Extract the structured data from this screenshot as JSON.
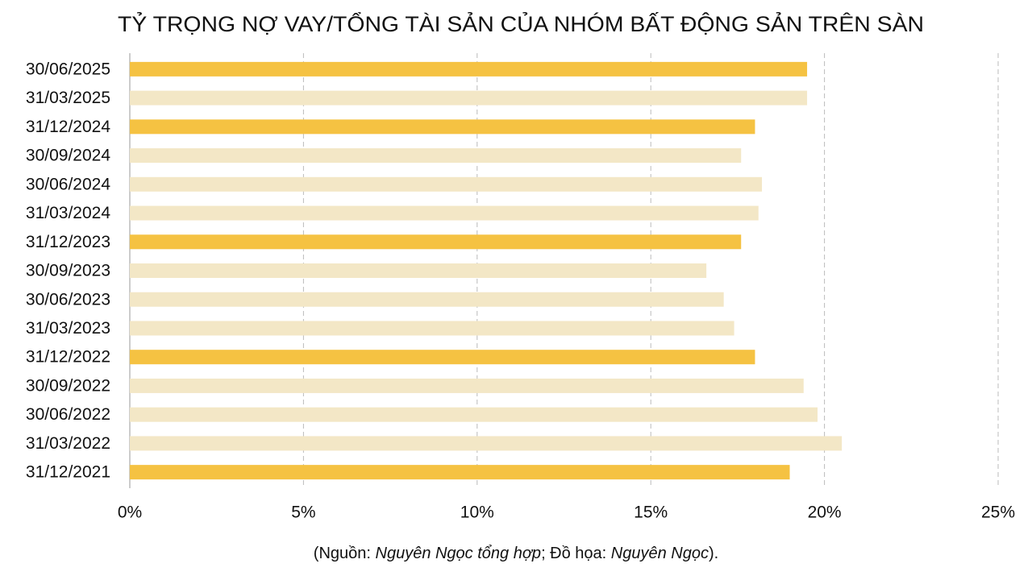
{
  "chart_data": {
    "type": "bar",
    "orientation": "horizontal",
    "title": "TỶ TRỌNG NỢ VAY/TỔNG TÀI SẢN CỦA NHÓM BẤT ĐỘNG SẢN TRÊN SÀN",
    "categories": [
      "30/06/2025",
      "31/03/2025",
      "31/12/2024",
      "30/09/2024",
      "30/06/2024",
      "31/03/2024",
      "31/12/2023",
      "30/09/2023",
      "30/06/2023",
      "31/03/2023",
      "31/12/2022",
      "30/09/2022",
      "30/06/2022",
      "31/03/2022",
      "31/12/2021"
    ],
    "values": [
      19.5,
      19.5,
      18.0,
      17.6,
      18.2,
      18.1,
      17.6,
      16.6,
      17.1,
      17.4,
      18.0,
      19.4,
      19.8,
      20.5,
      19.0
    ],
    "colors": [
      "#f5c242",
      "#f3e7c6",
      "#f5c242",
      "#f3e7c6",
      "#f3e7c6",
      "#f3e7c6",
      "#f5c242",
      "#f3e7c6",
      "#f3e7c6",
      "#f3e7c6",
      "#f5c242",
      "#f3e7c6",
      "#f3e7c6",
      "#f3e7c6",
      "#f5c242"
    ],
    "xlim": [
      0,
      25
    ],
    "xticks": [
      {
        "value": 0,
        "label": "0%"
      },
      {
        "value": 5,
        "label": "5%"
      },
      {
        "value": 10,
        "label": "10%"
      },
      {
        "value": 15,
        "label": "15%"
      },
      {
        "value": 20,
        "label": "20%"
      },
      {
        "value": 25,
        "label": "25%"
      }
    ],
    "grid": true,
    "source": [
      "(Nguồn:",
      "Nguyên Ngọc tổng hợp",
      "; Đồ họa:",
      "Nguyên Ngọc",
      ")."
    ]
  }
}
